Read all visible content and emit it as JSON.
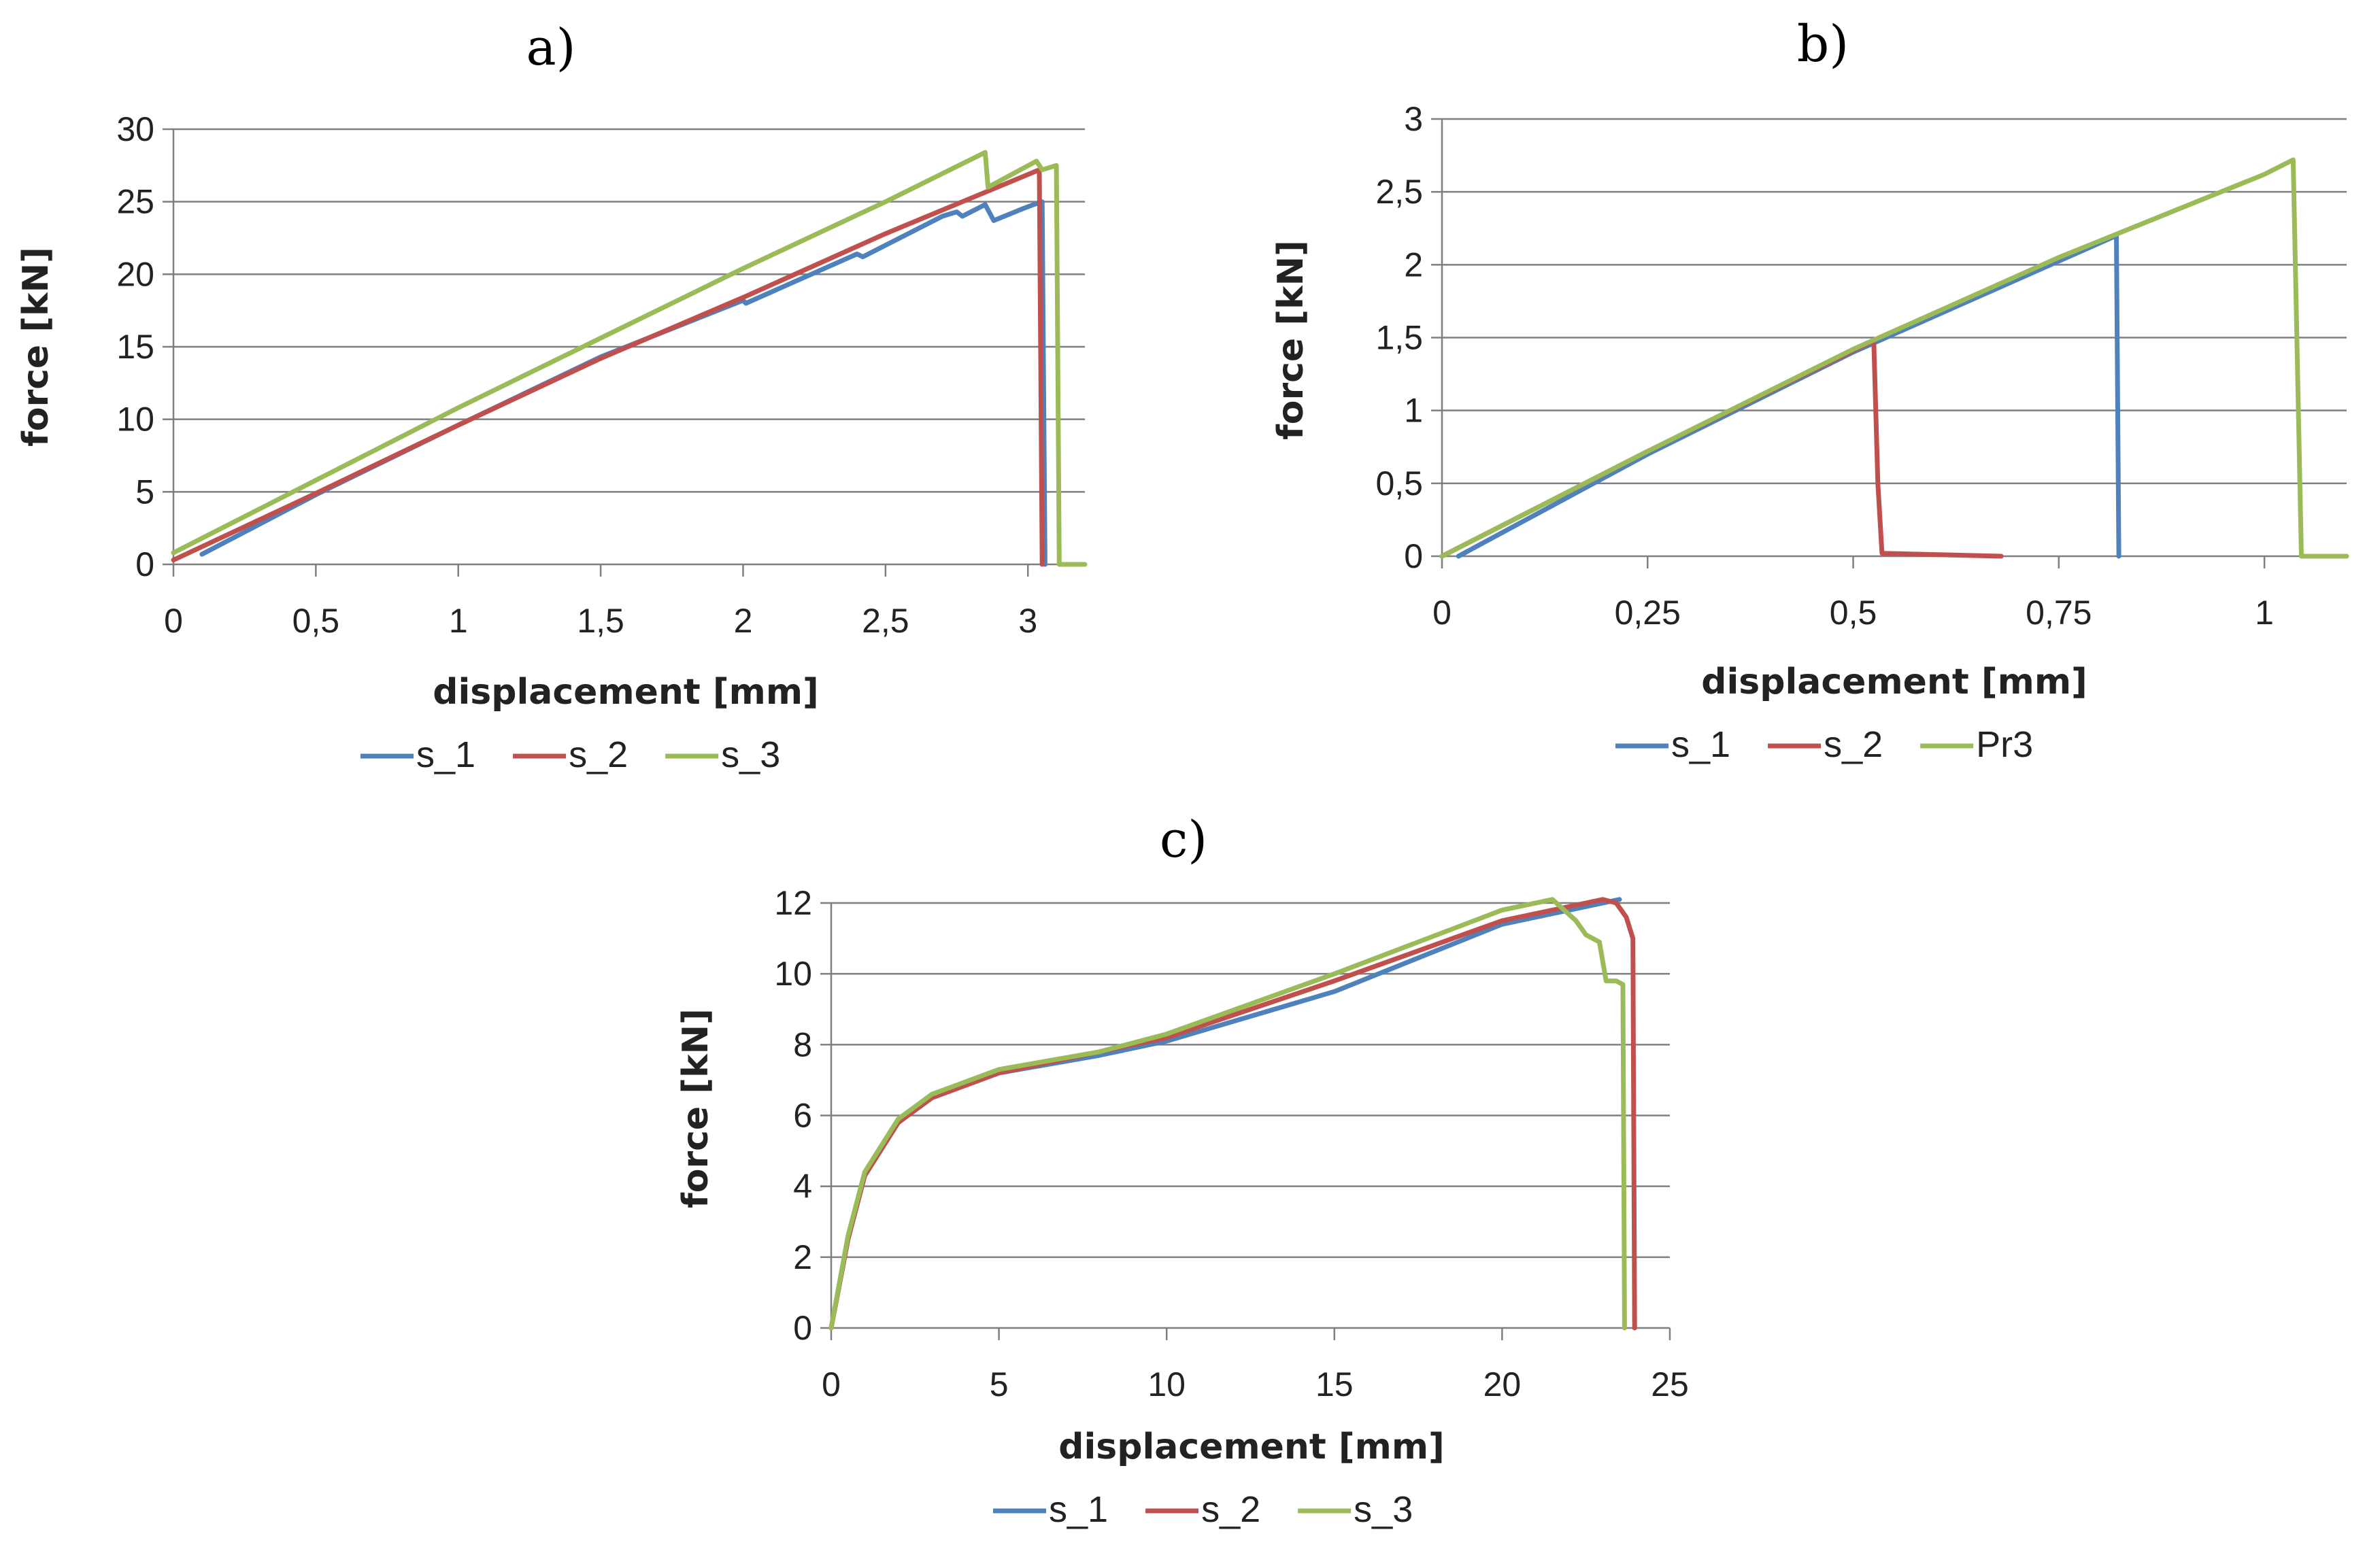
{
  "colors": {
    "s_1": "#4f81bd",
    "s_2": "#c0504d",
    "s_3": "#9bbb59"
  },
  "chart_data": [
    {
      "id": "a",
      "type": "line",
      "panel_label": "a)",
      "xlabel": "displacement [mm]",
      "ylabel": "force [kN]",
      "xlim": [
        0,
        3.2
      ],
      "ylim": [
        0,
        30
      ],
      "xticks": [
        0,
        0.5,
        1,
        1.5,
        2,
        2.5,
        3
      ],
      "xtick_labels": [
        "0",
        "0,5",
        "1",
        "1,5",
        "2",
        "2,5",
        "3"
      ],
      "yticks": [
        0,
        5,
        10,
        15,
        20,
        25,
        30
      ],
      "ytick_labels": [
        "0",
        "5",
        "10",
        "15",
        "20",
        "25",
        "30"
      ],
      "grid": "horizontal",
      "legend": "bottom",
      "series": [
        {
          "name": "s_1",
          "color": "#4f81bd",
          "points": [
            [
              0.1,
              0.7
            ],
            [
              0.5,
              4.8
            ],
            [
              1.0,
              9.6
            ],
            [
              1.5,
              14.3
            ],
            [
              2.0,
              18.2
            ],
            [
              2.01,
              18.0
            ],
            [
              2.4,
              21.4
            ],
            [
              2.42,
              21.2
            ],
            [
              2.7,
              24.0
            ],
            [
              2.75,
              24.3
            ],
            [
              2.77,
              24.0
            ],
            [
              2.85,
              24.8
            ],
            [
              2.88,
              23.7
            ],
            [
              2.98,
              24.5
            ],
            [
              3.02,
              24.8
            ],
            [
              3.05,
              25.0
            ],
            [
              3.06,
              0.0
            ]
          ]
        },
        {
          "name": "s_2",
          "color": "#c0504d",
          "points": [
            [
              0.0,
              0.3
            ],
            [
              0.5,
              4.9
            ],
            [
              1.0,
              9.6
            ],
            [
              1.5,
              14.2
            ],
            [
              2.0,
              18.4
            ],
            [
              2.5,
              22.8
            ],
            [
              3.04,
              27.2
            ],
            [
              3.05,
              0.0
            ]
          ]
        },
        {
          "name": "s_3",
          "color": "#9bbb59",
          "points": [
            [
              0.0,
              0.8
            ],
            [
              0.5,
              5.8
            ],
            [
              1.0,
              10.8
            ],
            [
              1.5,
              15.6
            ],
            [
              2.0,
              20.4
            ],
            [
              2.5,
              25.0
            ],
            [
              2.85,
              28.4
            ],
            [
              2.86,
              26.0
            ],
            [
              3.03,
              27.8
            ],
            [
              3.05,
              27.2
            ],
            [
              3.1,
              27.5
            ],
            [
              3.11,
              0.0
            ],
            [
              3.2,
              0.0
            ]
          ]
        }
      ]
    },
    {
      "id": "b",
      "type": "line",
      "panel_label": "b)",
      "xlabel": "displacement [mm]",
      "ylabel": "force [kN]",
      "xlim": [
        0,
        1.1
      ],
      "ylim": [
        0,
        3
      ],
      "xticks": [
        0,
        0.25,
        0.5,
        0.75,
        1
      ],
      "xtick_labels": [
        "0",
        "0,25",
        "0,5",
        "0,75",
        "1"
      ],
      "yticks": [
        0,
        0.5,
        1,
        1.5,
        2,
        2.5,
        3
      ],
      "ytick_labels": [
        "0",
        "0,5",
        "1",
        "1,5",
        "2",
        "2,5",
        "3"
      ],
      "grid": "horizontal",
      "legend": "bottom",
      "series": [
        {
          "name": "s_1",
          "color": "#4f81bd",
          "points": [
            [
              0.02,
              0.0
            ],
            [
              0.25,
              0.7
            ],
            [
              0.5,
              1.4
            ],
            [
              0.82,
              2.2
            ],
            [
              0.823,
              0.0
            ]
          ]
        },
        {
          "name": "s_2",
          "color": "#c0504d",
          "points": [
            [
              0.0,
              0.0
            ],
            [
              0.25,
              0.72
            ],
            [
              0.525,
              1.48
            ],
            [
              0.53,
              0.5
            ],
            [
              0.535,
              0.02
            ],
            [
              0.68,
              0.0
            ]
          ]
        },
        {
          "name": "Pr3",
          "color": "#9bbb59",
          "points": [
            [
              0.0,
              0.0
            ],
            [
              0.25,
              0.72
            ],
            [
              0.5,
              1.42
            ],
            [
              0.75,
              2.05
            ],
            [
              1.0,
              2.62
            ],
            [
              1.035,
              2.72
            ],
            [
              1.045,
              0.0
            ],
            [
              1.1,
              0.0
            ]
          ]
        }
      ]
    },
    {
      "id": "c",
      "type": "line",
      "panel_label": "c)",
      "xlabel": "displacement [mm]",
      "ylabel": "force [kN]",
      "xlim": [
        0,
        25
      ],
      "ylim": [
        0,
        12
      ],
      "xticks": [
        0,
        5,
        10,
        15,
        20,
        25
      ],
      "xtick_labels": [
        "0",
        "5",
        "10",
        "15",
        "20",
        "25"
      ],
      "yticks": [
        0,
        2,
        4,
        6,
        8,
        10,
        12
      ],
      "ytick_labels": [
        "0",
        "2",
        "4",
        "6",
        "8",
        "10",
        "12"
      ],
      "grid": "horizontal",
      "legend": "bottom",
      "series": [
        {
          "name": "s_1",
          "color": "#4f81bd",
          "points": [
            [
              0,
              0
            ],
            [
              0.5,
              2.5
            ],
            [
              1,
              4.3
            ],
            [
              2,
              5.8
            ],
            [
              3,
              6.5
            ],
            [
              5,
              7.2
            ],
            [
              8,
              7.7
            ],
            [
              10,
              8.1
            ],
            [
              15,
              9.5
            ],
            [
              20,
              11.4
            ],
            [
              23.5,
              12.1
            ]
          ]
        },
        {
          "name": "s_2",
          "color": "#c0504d",
          "points": [
            [
              0,
              0
            ],
            [
              0.5,
              2.5
            ],
            [
              1,
              4.3
            ],
            [
              2,
              5.8
            ],
            [
              3,
              6.5
            ],
            [
              5,
              7.2
            ],
            [
              8,
              7.8
            ],
            [
              10,
              8.2
            ],
            [
              15,
              9.8
            ],
            [
              20,
              11.5
            ],
            [
              23.0,
              12.1
            ],
            [
              23.4,
              12.0
            ],
            [
              23.7,
              11.6
            ],
            [
              23.9,
              11.0
            ],
            [
              23.95,
              0.0
            ]
          ]
        },
        {
          "name": "s_3",
          "color": "#9bbb59",
          "points": [
            [
              0,
              0
            ],
            [
              0.5,
              2.6
            ],
            [
              1,
              4.4
            ],
            [
              2,
              5.9
            ],
            [
              3,
              6.6
            ],
            [
              5,
              7.3
            ],
            [
              8,
              7.8
            ],
            [
              10,
              8.3
            ],
            [
              15,
              10.0
            ],
            [
              20,
              11.8
            ],
            [
              21.5,
              12.1
            ],
            [
              22.2,
              11.5
            ],
            [
              22.5,
              11.1
            ],
            [
              22.9,
              10.9
            ],
            [
              23.1,
              9.8
            ],
            [
              23.4,
              9.8
            ],
            [
              23.6,
              9.7
            ],
            [
              23.65,
              0.0
            ]
          ]
        }
      ]
    }
  ]
}
